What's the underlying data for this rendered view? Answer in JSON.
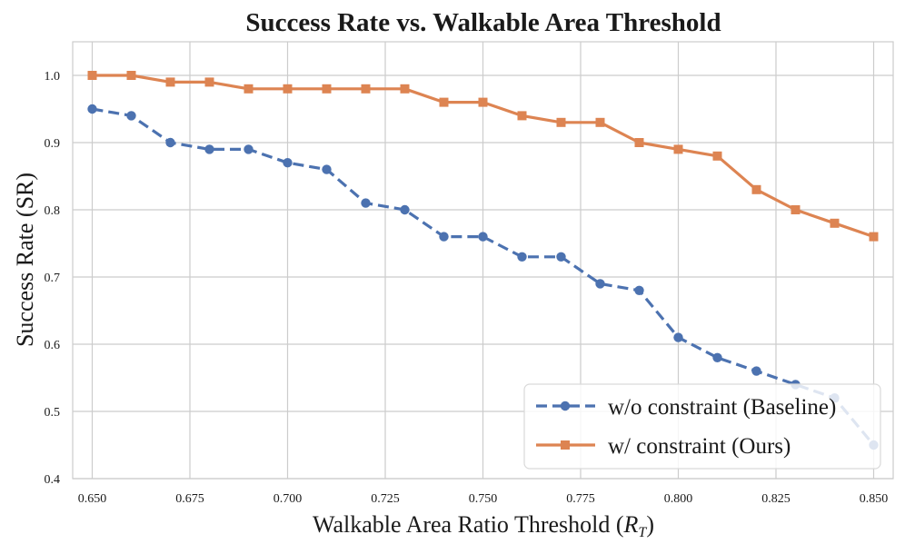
{
  "chart_data": {
    "type": "line",
    "title": "Success Rate vs. Walkable Area Threshold",
    "xlabel": "Walkable Area Ratio Threshold (",
    "xlabel_symbol": "R",
    "xlabel_subscript": "T",
    "xlabel_close": ")",
    "ylabel": "Success Rate (SR)",
    "xlim": [
      0.645,
      0.855
    ],
    "ylim": [
      0.4,
      1.05
    ],
    "xticks": [
      0.65,
      0.675,
      0.7,
      0.725,
      0.75,
      0.775,
      0.8,
      0.825,
      0.85
    ],
    "xtick_labels": [
      "0.650",
      "0.675",
      "0.700",
      "0.725",
      "0.750",
      "0.775",
      "0.800",
      "0.825",
      "0.850"
    ],
    "yticks": [
      0.4,
      0.5,
      0.6,
      0.7,
      0.8,
      0.9,
      1.0
    ],
    "ytick_labels": [
      "0.4",
      "0.5",
      "0.6",
      "0.7",
      "0.8",
      "0.9",
      "1.0"
    ],
    "grid": true,
    "legend_position": "bottom-right",
    "x": [
      0.65,
      0.66,
      0.67,
      0.68,
      0.69,
      0.7,
      0.71,
      0.72,
      0.73,
      0.74,
      0.75,
      0.76,
      0.77,
      0.78,
      0.79,
      0.8,
      0.81,
      0.82,
      0.83,
      0.84,
      0.85
    ],
    "series": [
      {
        "name": "w/o constraint (Baseline)",
        "color": "#4c72b0",
        "line_style": "dashed",
        "marker": "circle",
        "values": [
          0.95,
          0.94,
          0.9,
          0.89,
          0.89,
          0.87,
          0.86,
          0.81,
          0.8,
          0.76,
          0.76,
          0.73,
          0.73,
          0.69,
          0.68,
          0.61,
          0.58,
          0.56,
          0.54,
          0.52,
          0.45
        ]
      },
      {
        "name": "w/ constraint (Ours)",
        "color": "#dd8452",
        "line_style": "solid",
        "marker": "square",
        "values": [
          1.0,
          1.0,
          0.99,
          0.99,
          0.98,
          0.98,
          0.98,
          0.98,
          0.98,
          0.96,
          0.96,
          0.94,
          0.93,
          0.93,
          0.9,
          0.89,
          0.88,
          0.83,
          0.8,
          0.78,
          0.76
        ]
      }
    ]
  }
}
